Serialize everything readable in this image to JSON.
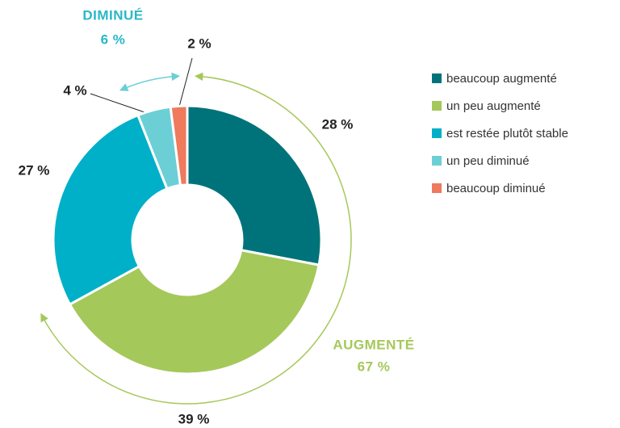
{
  "chart_data": {
    "type": "donut",
    "categories": [
      "beaucoup augmenté",
      "un peu augmenté",
      "est restée plutôt stable",
      "un peu diminué",
      "beaucoup diminué"
    ],
    "values": [
      28,
      39,
      27,
      4,
      2
    ],
    "value_labels": [
      "28 %",
      "39 %",
      "27  %",
      "4 %",
      "2 %"
    ],
    "colors": [
      "#00737a",
      "#a5c85a",
      "#00b0c8",
      "#6ccfd6",
      "#ef7a5c"
    ],
    "legend": "right",
    "annotations": [
      {
        "title": "DIMINUÉ",
        "text": "6 %",
        "color": "#29b8c8"
      },
      {
        "title": "AUGMENTÉ",
        "text": "67 %",
        "color": "#a5c85a"
      }
    ]
  }
}
